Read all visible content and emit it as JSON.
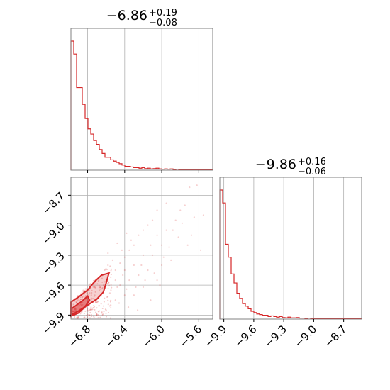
{
  "colors": {
    "series": "#d62728",
    "grid": "#b0b0b0",
    "frame": "#808080"
  },
  "chart_data": [
    {
      "panel": "marginal-param1",
      "type": "histogram",
      "title": {
        "median": "−6.86",
        "plus": "+0.19",
        "minus": "−0.08"
      },
      "xlim": [
        -6.98,
        -5.45
      ],
      "grid": true,
      "bin_edges_start": -6.98,
      "bin_width": 0.0306,
      "counts": [
        1.0,
        0.9,
        0.64,
        0.64,
        0.51,
        0.4,
        0.32,
        0.28,
        0.23,
        0.2,
        0.16,
        0.13,
        0.1,
        0.1,
        0.08,
        0.07,
        0.06,
        0.05,
        0.04,
        0.03,
        0.03,
        0.025,
        0.02,
        0.02,
        0.015,
        0.02,
        0.012,
        0.015,
        0.01,
        0.012,
        0.015,
        0.01,
        0.008,
        0.01,
        0.008,
        0.01,
        0.005,
        0.008,
        0.006,
        0.005,
        0.005,
        0.005,
        0.004,
        0.005,
        0.003,
        0.005,
        0.004,
        0.003,
        0.003,
        0.004
      ]
    },
    {
      "panel": "marginal-param2",
      "type": "histogram",
      "title": {
        "median": "−9.86",
        "plus": "+0.16",
        "minus": "−0.06"
      },
      "xlim": [
        -9.94,
        -8.52
      ],
      "grid": true,
      "xticks": [
        "−9.9",
        "−9.6",
        "−9.3",
        "−9.0",
        "−8.7"
      ],
      "x_tick_values": [
        -9.9,
        -9.6,
        -9.3,
        -9.0,
        -8.7
      ],
      "bin_edges_start": -9.94,
      "bin_width": 0.0284,
      "counts": [
        1.0,
        0.9,
        0.58,
        0.48,
        0.35,
        0.28,
        0.2,
        0.16,
        0.12,
        0.1,
        0.08,
        0.06,
        0.05,
        0.04,
        0.035,
        0.03,
        0.03,
        0.02,
        0.025,
        0.02,
        0.015,
        0.02,
        0.012,
        0.01,
        0.015,
        0.01,
        0.01,
        0.012,
        0.008,
        0.008,
        0.006,
        0.008,
        0.005,
        0.006,
        0.005,
        0.005,
        0.004,
        0.004,
        0.003,
        0.004,
        0.003,
        0.003,
        0.002,
        0.003,
        0.002,
        0.003,
        0.002,
        0.002,
        0.002,
        0.002
      ]
    },
    {
      "panel": "joint-param1-param2",
      "type": "scatter",
      "xlim": [
        -6.98,
        -5.45
      ],
      "ylim": [
        -9.94,
        -8.52
      ],
      "grid": true,
      "xticks": [
        "−6.8",
        "−6.4",
        "−6.0",
        "−5.6"
      ],
      "x_tick_values": [
        -6.8,
        -6.4,
        -6.0,
        -5.6
      ],
      "yticks": [
        "−8.7",
        "−9.0",
        "−9.3",
        "−9.6",
        "−9.9"
      ],
      "y_tick_values": [
        -8.7,
        -9.0,
        -9.3,
        -9.6,
        -9.9
      ],
      "contour_outer": [
        [
          -6.98,
          -9.9
        ],
        [
          -6.98,
          -9.77
        ],
        [
          -6.9,
          -9.72
        ],
        [
          -6.8,
          -9.65
        ],
        [
          -6.72,
          -9.56
        ],
        [
          -6.65,
          -9.5
        ],
        [
          -6.57,
          -9.48
        ],
        [
          -6.6,
          -9.58
        ],
        [
          -6.63,
          -9.67
        ],
        [
          -6.7,
          -9.74
        ],
        [
          -6.8,
          -9.8
        ],
        [
          -6.9,
          -9.86
        ],
        [
          -6.98,
          -9.9
        ]
      ],
      "contour_inner": [
        [
          -6.98,
          -9.91
        ],
        [
          -6.98,
          -9.84
        ],
        [
          -6.92,
          -9.8
        ],
        [
          -6.86,
          -9.76
        ],
        [
          -6.8,
          -9.71
        ],
        [
          -6.78,
          -9.75
        ],
        [
          -6.83,
          -9.82
        ],
        [
          -6.9,
          -9.88
        ],
        [
          -6.98,
          -9.91
        ]
      ],
      "points": [
        [
          -6.55,
          -9.52
        ],
        [
          -6.5,
          -9.45
        ],
        [
          -6.45,
          -9.38
        ],
        [
          -6.4,
          -9.32
        ],
        [
          -6.35,
          -9.25
        ],
        [
          -6.3,
          -9.2
        ],
        [
          -6.25,
          -9.1
        ],
        [
          -6.2,
          -9.05
        ],
        [
          -6.15,
          -9.0
        ],
        [
          -6.1,
          -8.95
        ],
        [
          -6.05,
          -9.1
        ],
        [
          -6.0,
          -9.2
        ],
        [
          -5.95,
          -9.05
        ],
        [
          -5.9,
          -9.35
        ],
        [
          -5.85,
          -8.95
        ],
        [
          -5.8,
          -8.85
        ],
        [
          -5.75,
          -8.8
        ],
        [
          -5.7,
          -8.62
        ],
        [
          -5.62,
          -8.6
        ],
        [
          -5.65,
          -8.92
        ],
        [
          -5.55,
          -8.9
        ],
        [
          -6.2,
          -9.3
        ],
        [
          -6.3,
          -9.4
        ],
        [
          -6.4,
          -9.45
        ],
        [
          -6.5,
          -9.55
        ],
        [
          -6.6,
          -9.6
        ],
        [
          -6.45,
          -9.6
        ],
        [
          -6.35,
          -9.55
        ],
        [
          -6.25,
          -9.5
        ],
        [
          -6.15,
          -9.45
        ],
        [
          -6.1,
          -9.3
        ],
        [
          -6.0,
          -9.4
        ],
        [
          -6.05,
          -9.55
        ],
        [
          -6.2,
          -9.62
        ],
        [
          -6.3,
          -9.7
        ],
        [
          -6.4,
          -9.7
        ],
        [
          -6.5,
          -9.75
        ],
        [
          -6.55,
          -9.8
        ],
        [
          -6.6,
          -9.85
        ],
        [
          -6.65,
          -9.88
        ],
        [
          -6.7,
          -9.9
        ],
        [
          -6.48,
          -9.62
        ],
        [
          -6.42,
          -9.5
        ],
        [
          -6.38,
          -9.64
        ],
        [
          -6.28,
          -9.62
        ],
        [
          -6.18,
          -9.55
        ],
        [
          -6.08,
          -9.48
        ],
        [
          -5.98,
          -9.32
        ],
        [
          -5.92,
          -9.22
        ],
        [
          -5.82,
          -9.12
        ],
        [
          -5.72,
          -9.2
        ],
        [
          -6.33,
          -9.15
        ],
        [
          -6.43,
          -9.25
        ],
        [
          -6.53,
          -9.35
        ],
        [
          -6.58,
          -9.4
        ],
        [
          -6.62,
          -9.45
        ],
        [
          -6.68,
          -9.55
        ],
        [
          -6.72,
          -9.62
        ],
        [
          -6.76,
          -9.7
        ],
        [
          -6.56,
          -9.68
        ],
        [
          -6.46,
          -9.78
        ],
        [
          -6.36,
          -9.82
        ],
        [
          -6.26,
          -9.85
        ],
        [
          -6.12,
          -9.75
        ],
        [
          -6.02,
          -9.6
        ],
        [
          -6.22,
          -9.4
        ],
        [
          -6.12,
          -9.2
        ],
        [
          -5.88,
          -9.05
        ],
        [
          -5.78,
          -8.98
        ],
        [
          -5.68,
          -9.1
        ],
        [
          -5.58,
          -9.25
        ],
        [
          -6.05,
          -8.85
        ],
        [
          -5.95,
          -8.78
        ],
        [
          -6.38,
          -9.08
        ],
        [
          -6.48,
          -9.18
        ],
        [
          -6.58,
          -9.28
        ]
      ]
    }
  ]
}
